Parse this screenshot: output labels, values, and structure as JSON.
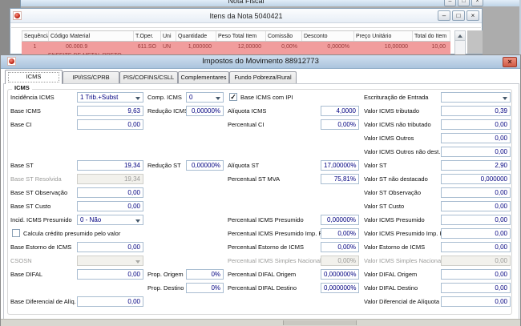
{
  "parent_window": {
    "title": "Nota Fiscal",
    "buttons": [
      {
        "name": "minimize",
        "glyph": "–"
      },
      {
        "name": "maximize",
        "glyph": "□"
      },
      {
        "name": "close",
        "glyph": "×"
      }
    ]
  },
  "items_window": {
    "title": "Itens da Nota 5040421",
    "buttons": [
      {
        "name": "minimize",
        "glyph": "–"
      },
      {
        "name": "maximize",
        "glyph": "□"
      },
      {
        "name": "close",
        "glyph": "×"
      }
    ],
    "table": {
      "columns": [
        {
          "key": "seq",
          "label": "Sequência"
        },
        {
          "key": "codigo",
          "label": "Código Material"
        },
        {
          "key": "toper",
          "label": "T.Oper."
        },
        {
          "key": "uni",
          "label": "Uni"
        },
        {
          "key": "qtd",
          "label": "Quantidade"
        },
        {
          "key": "peso",
          "label": "Peso Total Item"
        },
        {
          "key": "com",
          "label": "Comissão"
        },
        {
          "key": "desc",
          "label": "Desconto"
        },
        {
          "key": "preco",
          "label": "Preço Unitário"
        },
        {
          "key": "total",
          "label": "Total do Item"
        }
      ],
      "row": {
        "seq": "1",
        "codigo": "00.000.9",
        "codigo_desc": "ENFEITE DE METAL PRETO",
        "toper": "611.SO",
        "uni": "UN",
        "qtd": "1,000000",
        "peso": "12,00000",
        "com": "0,00%",
        "desc": "0,0000%",
        "preco": "10,00000",
        "total": "10,00"
      }
    }
  },
  "tax_dialog": {
    "title": "Impostos do Movimento 88912773",
    "tabs": [
      {
        "label": "ICMS",
        "active": true
      },
      {
        "label": "IPI/ISS/CPRB",
        "active": false
      },
      {
        "label": "PIS/COFINS/CSLL",
        "active": false
      },
      {
        "label": "Complementares",
        "active": false
      },
      {
        "label": "Fundo Pobreza/Rural",
        "active": false
      }
    ],
    "group_title": "ICMS",
    "fields": [
      {
        "id": "incidencia-icms",
        "label": "Incidência ICMS",
        "value": "1 Trib.+Subst",
        "type": "dropdown",
        "col": "A",
        "row": 0
      },
      {
        "id": "comp-icms",
        "label": "Comp. ICMS",
        "value": "0",
        "type": "dropdown",
        "col": "B",
        "row": 0
      },
      {
        "id": "base-icms-com-ipi",
        "label": "Base ICMS com IPI",
        "type": "checkbox",
        "checked": true,
        "col": "C",
        "row": 0
      },
      {
        "id": "escrituracao-de-entrada",
        "label": "Escrituração de Entrada",
        "value": "",
        "type": "dropdown",
        "col": "D",
        "row": 0
      },
      {
        "id": "base-icms",
        "label": "Base ICMS",
        "value": "9,63",
        "col": "A",
        "row": 1
      },
      {
        "id": "reducao-icms",
        "label": "Redução ICMS",
        "value": "0,00000%",
        "col": "B",
        "row": 1
      },
      {
        "id": "aliquota-icms",
        "label": "Alíquota ICMS",
        "value": "4,0000",
        "col": "C",
        "row": 1
      },
      {
        "id": "valor-icms-tributado",
        "label": "Valor ICMS tributado",
        "value": "0,39",
        "col": "D",
        "row": 1
      },
      {
        "id": "base-ci",
        "label": "Base CI",
        "value": "0,00",
        "col": "A",
        "row": 2
      },
      {
        "id": "percentual-ci",
        "label": "Percentual CI",
        "value": "0,00%",
        "col": "C",
        "row": 2
      },
      {
        "id": "valor-icms-nao-tributado",
        "label": "Valor ICMS não tributado",
        "value": "0,00",
        "col": "D",
        "row": 2
      },
      {
        "id": "valor-icms-outros",
        "label": "Valor ICMS Outros",
        "value": "0,00",
        "col": "D",
        "row": 3
      },
      {
        "id": "valor-icms-outros-nao-dest",
        "label": "Valor ICMS Outros não dest.",
        "value": "0,00",
        "col": "D",
        "row": 4
      },
      {
        "id": "base-st",
        "label": "Base ST",
        "value": "19,34",
        "col": "A",
        "row": 5
      },
      {
        "id": "reducao-st",
        "label": "Redução ST",
        "value": "0,00000%",
        "col": "B",
        "row": 5
      },
      {
        "id": "aliquota-st",
        "label": "Alíquota ST",
        "value": "17,00000%",
        "col": "C",
        "row": 5
      },
      {
        "id": "valor-st",
        "label": "Valor ST",
        "value": "2,90",
        "col": "D",
        "row": 5
      },
      {
        "id": "base-st-resolvida",
        "label": "Base ST Resolvida",
        "value": "19,34",
        "disabled": true,
        "col": "A",
        "row": 6
      },
      {
        "id": "percentual-st-mva",
        "label": "Percentual ST MVA",
        "value": "75,81%",
        "col": "C",
        "row": 6
      },
      {
        "id": "valor-st-nao-destacado",
        "label": "Valor ST não destacado",
        "value": "0,000000",
        "col": "D",
        "row": 6
      },
      {
        "id": "base-st-observacao",
        "label": "Base ST Observação",
        "value": "0,00",
        "col": "A",
        "row": 7
      },
      {
        "id": "valor-st-observacao",
        "label": "Valor ST Observação",
        "value": "0,00",
        "col": "D",
        "row": 7
      },
      {
        "id": "base-st-custo",
        "label": "Base ST Custo",
        "value": "0,00",
        "col": "A",
        "row": 8
      },
      {
        "id": "valor-st-custo",
        "label": "Valor ST Custo",
        "value": "0,00",
        "col": "D",
        "row": 8
      },
      {
        "id": "incid-icms-presumido",
        "label": "Incid. ICMS Presumido",
        "value": "0 - Não",
        "type": "dropdown",
        "col": "A",
        "row": 9
      },
      {
        "id": "percentual-icms-presumido",
        "label": "Percentual ICMS Presumido",
        "value": "0,00000%",
        "col": "C",
        "row": 9
      },
      {
        "id": "valor-icms-presumido",
        "label": "Valor ICMS Presumido",
        "value": "0,00",
        "col": "D",
        "row": 9
      },
      {
        "id": "calcula-credito-presumido",
        "label": "Calcula crédito presumido pelo valor",
        "type": "checkbox",
        "checked": false,
        "col": "A",
        "row": 10
      },
      {
        "id": "percentual-icms-presumido-imp-pr",
        "label": "Percentual ICMS Presumido Imp. PR",
        "value": "0,00%",
        "col": "C",
        "row": 10
      },
      {
        "id": "valor-icms-presumido-imp-pr",
        "label": "Valor ICMS Presumido Imp. PR",
        "value": "0,00",
        "col": "D",
        "row": 10
      },
      {
        "id": "base-estorno-de-icms",
        "label": "Base Estorno de ICMS",
        "value": "0,00",
        "col": "A",
        "row": 11
      },
      {
        "id": "percentual-estorno-de-icms",
        "label": "Percentual Estorno de ICMS",
        "value": "0,00%",
        "col": "C",
        "row": 11
      },
      {
        "id": "valor-estorno-de-icms",
        "label": "Valor Estorno de ICMS",
        "value": "0,00",
        "col": "D",
        "row": 11
      },
      {
        "id": "csosn",
        "label": "CSOSN",
        "value": "",
        "type": "dropdown",
        "disabled": true,
        "col": "A",
        "row": 12
      },
      {
        "id": "percentual-icms-simples-nacional",
        "label": "Percentual ICMS Simples Nacional",
        "value": "0,00%",
        "disabled": true,
        "col": "C",
        "row": 12
      },
      {
        "id": "valor-icms-simples-nacional",
        "label": "Valor ICMS Simples Nacional",
        "value": "0,00",
        "disabled": true,
        "col": "D",
        "row": 12
      },
      {
        "id": "base-difal",
        "label": "Base DIFAL",
        "value": "0,00",
        "col": "A",
        "row": 13
      },
      {
        "id": "prop-origem",
        "label": "Prop. Origem",
        "value": "0%",
        "col": "B",
        "row": 13
      },
      {
        "id": "percentual-difal-origem",
        "label": "Percentual DIFAL Origem",
        "value": "0,000000%",
        "col": "C",
        "row": 13
      },
      {
        "id": "valor-difal-origem",
        "label": "Valor DIFAL Origem",
        "value": "0,00",
        "col": "D",
        "row": 13
      },
      {
        "id": "prop-destino",
        "label": "Prop. Destino",
        "value": "0%",
        "col": "B",
        "row": 14
      },
      {
        "id": "percentual-difal-destino",
        "label": "Percentual DIFAL Destino",
        "value": "0,000000%",
        "col": "C",
        "row": 14
      },
      {
        "id": "valor-difal-destino",
        "label": "Valor DIFAL Destino",
        "value": "0,00",
        "col": "D",
        "row": 14
      },
      {
        "id": "base-diferencial-de-aliq",
        "label": "Base Diferencial de Alíq.",
        "value": "0,00",
        "col": "A",
        "row": 15
      },
      {
        "id": "valor-diferencial-de-aliquota",
        "label": "Valor Diferencial de Alíquota",
        "value": "0,00",
        "col": "D",
        "row": 15
      }
    ]
  },
  "colors": {
    "row_highlight": "#f19d9d",
    "row_text": "#993b3b",
    "value_text": "#000080",
    "titlebar_blue": "#bdd2e6",
    "close_button_red": "#cf5a45"
  }
}
